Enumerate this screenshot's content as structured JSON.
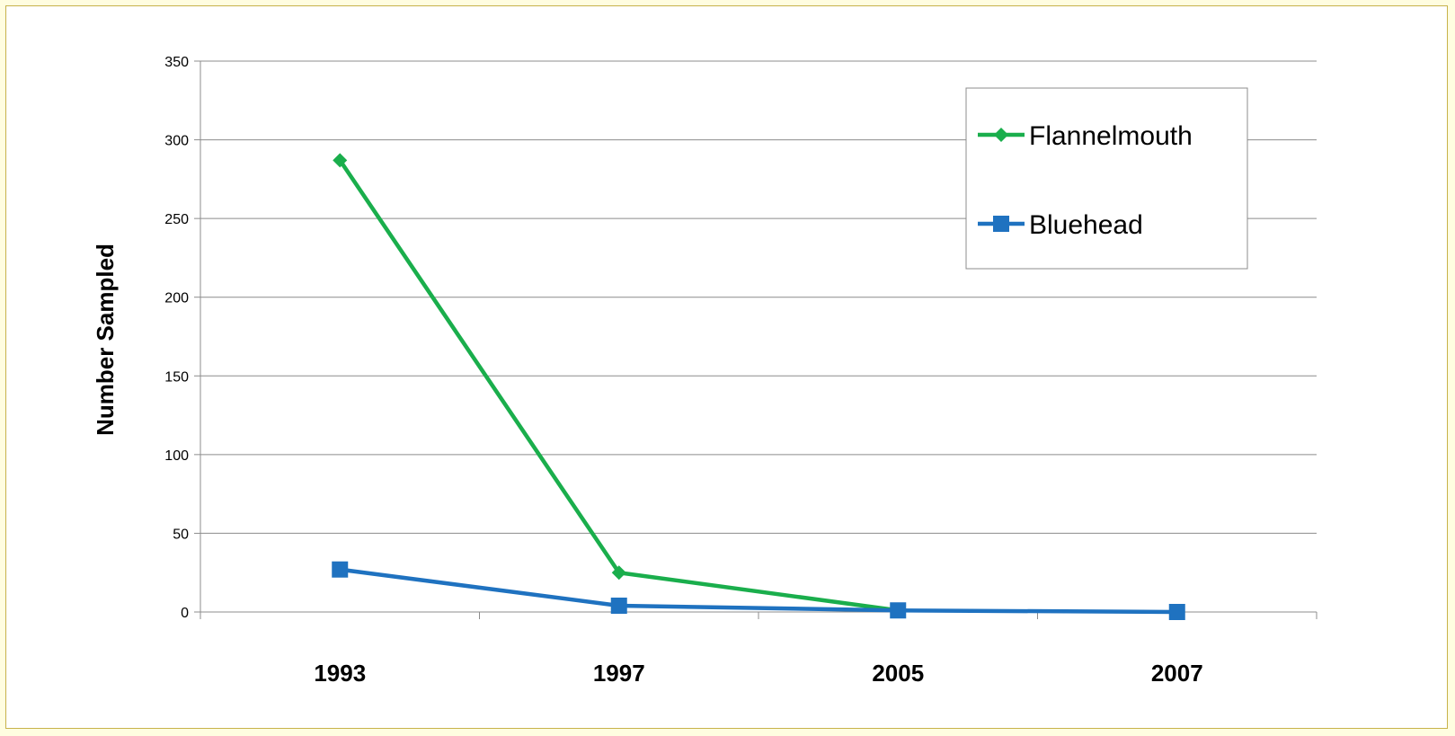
{
  "chart_data": {
    "type": "line",
    "title": "",
    "xlabel": "",
    "ylabel": "Number Sampled",
    "categories": [
      "1993",
      "1997",
      "2005",
      "2007"
    ],
    "ylim": [
      0,
      350
    ],
    "yticks": [
      0,
      50,
      100,
      150,
      200,
      250,
      300,
      350
    ],
    "grid": true,
    "legend_position": "top-right",
    "series": [
      {
        "name": "Flannelmouth",
        "values": [
          287,
          25,
          1,
          null
        ],
        "color": "#1aae4c",
        "marker": "diamond"
      },
      {
        "name": "Bluehead",
        "values": [
          27,
          4,
          1,
          0
        ],
        "color": "#1f72c0",
        "marker": "square"
      }
    ]
  }
}
